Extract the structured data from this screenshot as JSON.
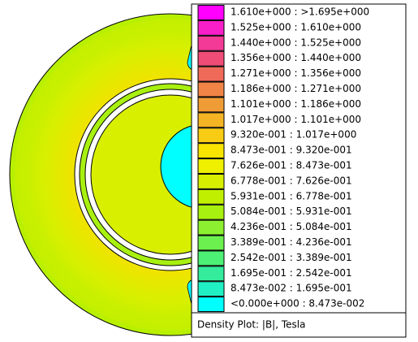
{
  "legend": {
    "entries": [
      {
        "label": "1.610e+000 : >1.695e+000",
        "color": "#ff00ff"
      },
      {
        "label": "1.525e+000 : 1.610e+000",
        "color": "#f81ec8"
      },
      {
        "label": "1.440e+000 : 1.525e+000",
        "color": "#f23a96"
      },
      {
        "label": "1.356e+000 : 1.440e+000",
        "color": "#f04c78"
      },
      {
        "label": "1.271e+000 : 1.356e+000",
        "color": "#f06a5a"
      },
      {
        "label": "1.186e+000 : 1.271e+000",
        "color": "#f08446"
      },
      {
        "label": "1.101e+000 : 1.186e+000",
        "color": "#f09c36"
      },
      {
        "label": "1.017e+000 : 1.101e+000",
        "color": "#f4b424"
      },
      {
        "label": "9.320e-001 : 1.017e+000",
        "color": "#f8cc14"
      },
      {
        "label": "8.473e-001 : 9.320e-001",
        "color": "#f8e400"
      },
      {
        "label": "7.626e-001 : 8.473e-001",
        "color": "#eef000"
      },
      {
        "label": "6.778e-001 : 7.626e-001",
        "color": "#d8f000"
      },
      {
        "label": "5.931e-001 : 6.778e-001",
        "color": "#c0f000"
      },
      {
        "label": "5.084e-001 : 5.931e-001",
        "color": "#a8f010"
      },
      {
        "label": "4.236e-001 : 5.084e-001",
        "color": "#8cf030"
      },
      {
        "label": "3.389e-001 : 4.236e-001",
        "color": "#6cf050"
      },
      {
        "label": "2.542e-001 : 3.389e-001",
        "color": "#4cf074"
      },
      {
        "label": "1.695e-001 : 2.542e-001",
        "color": "#34ec9c"
      },
      {
        "label": "8.473e-002 : 1.695e-001",
        "color": "#20f0c4"
      },
      {
        "label": "<0.000e+000 : 8.473e-002",
        "color": "#00ffff"
      }
    ],
    "title": "Density Plot: |B|, Tesla"
  }
}
